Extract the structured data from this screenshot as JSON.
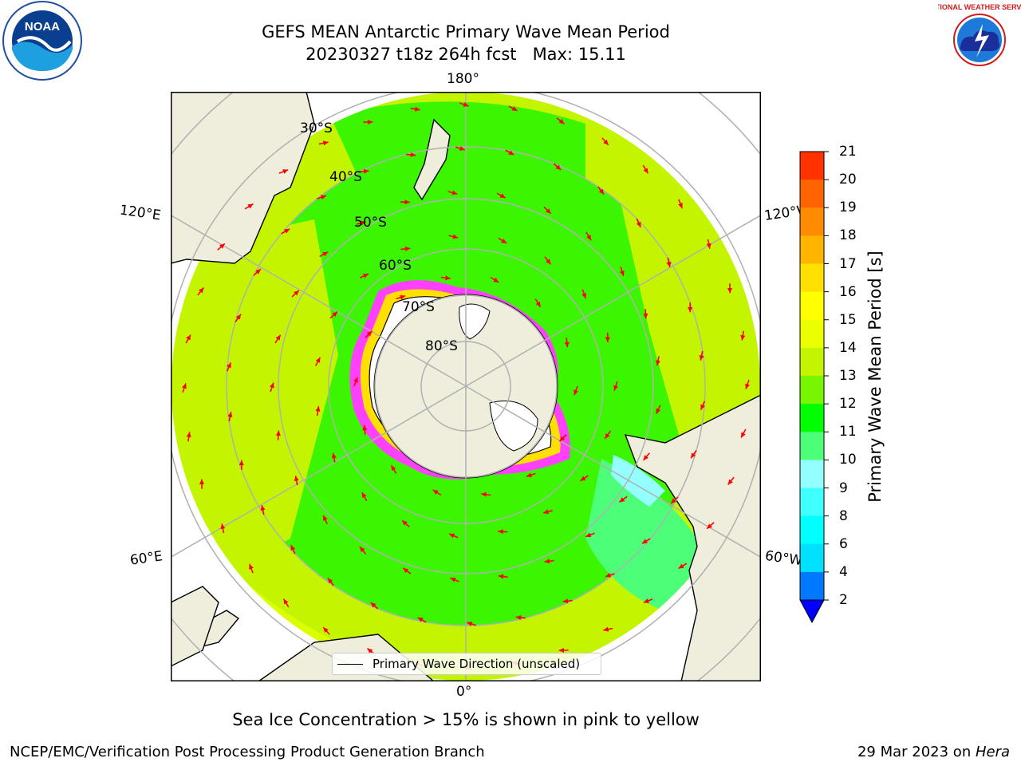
{
  "header": {
    "title_line1": "GEFS MEAN Antarctic Primary Wave Mean Period",
    "title_line2": "20230327 t18z 264h fcst   Max: 15.11"
  },
  "logos": {
    "left": "noaa-logo",
    "right": "national-weather-service-logo",
    "right_text": "NATIONAL WEATHER SERVICE",
    "left_text": "NOAA"
  },
  "map": {
    "projection": "south polar stereographic",
    "longitude_labels": {
      "top": "180°",
      "bottom": "0°",
      "left_upper": "120°E",
      "left_lower": "60°E",
      "right_upper": "120°W",
      "right_lower": "60°W"
    },
    "latitude_labels": [
      "30°S",
      "40°S",
      "50°S",
      "60°S",
      "70°S",
      "80°S"
    ],
    "ocean_colors": {
      "green": "#3cf500",
      "lime": "#c4f500",
      "light_green": "#4dff78",
      "yellow_green": "#dcff00",
      "cyan": "#94ffff"
    },
    "land_color": "#efeedc",
    "ice_colors": {
      "pink": "#ff40ff",
      "yellow": "#ffe000",
      "white": "#ffffff"
    },
    "arrow_color": "#ff0000",
    "grid_color": "#b0b0b0",
    "legend_label": "Primary Wave Direction (unscaled)"
  },
  "colorbar": {
    "label": "Primary Wave Mean Period [s]",
    "ticks": [
      "21",
      "20",
      "19",
      "18",
      "17",
      "16",
      "15",
      "14",
      "13",
      "12",
      "11",
      "10",
      "9",
      "8",
      "6",
      "4",
      "2"
    ],
    "colors": [
      "#ff0000",
      "#ff3200",
      "#ff6400",
      "#ff8c00",
      "#ffb400",
      "#ffe000",
      "#ffff00",
      "#ebff00",
      "#c4f500",
      "#78f500",
      "#00ff00",
      "#4dff78",
      "#94ffff",
      "#40ffff",
      "#00ffff",
      "#00e0ff",
      "#0078ff",
      "#0000ff"
    ],
    "extend_color": "#0000ff"
  },
  "notes": {
    "sea_ice": "Sea Ice Concentration > 15% is shown in pink to yellow"
  },
  "footer": {
    "left": "NCEP/EMC/Verification Post Processing Product Generation Branch",
    "date": "29 Mar 2023 on ",
    "machine": "Hera"
  }
}
